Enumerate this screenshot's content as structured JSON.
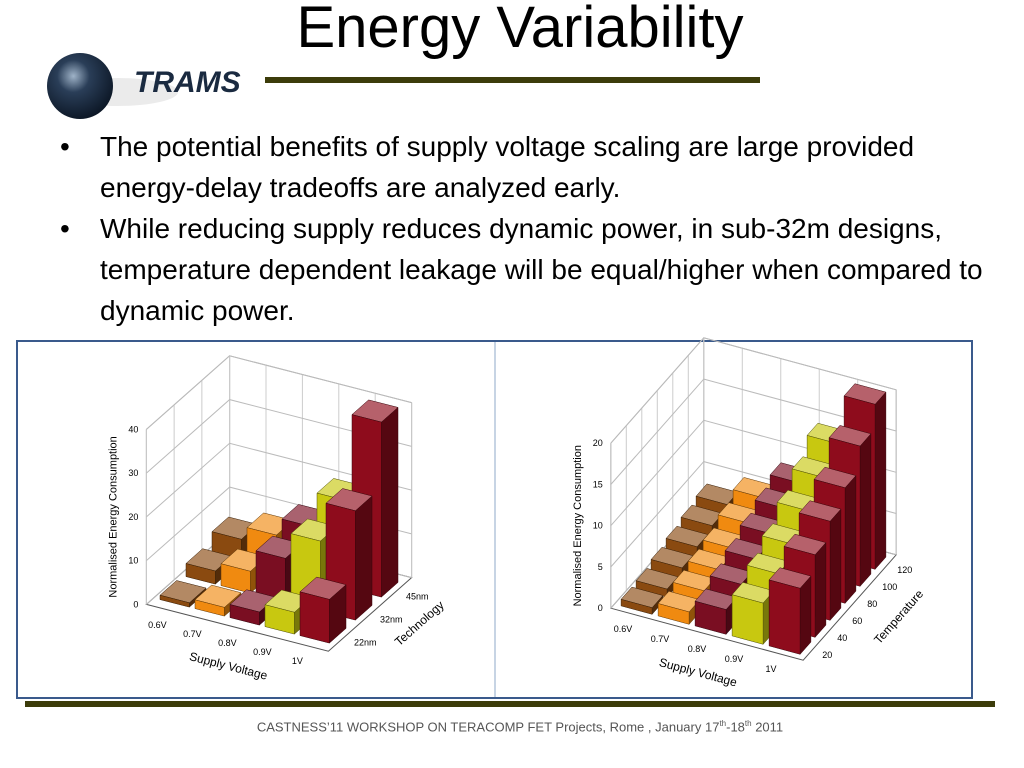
{
  "header": {
    "title": "Energy Variability",
    "logo": "TRAMS"
  },
  "bullets": [
    "The potential benefits of supply voltage scaling are large provided energy-delay tradeoffs are analyzed early.",
    "While reducing supply reduces dynamic power, in sub-32m designs, temperature dependent leakage will be equal/higher when compared to dynamic power."
  ],
  "chart_data": [
    {
      "type": "bar3d",
      "ylabel": "Normalised Energy Consumption",
      "xlabel": "Supply Voltage",
      "zlabel": "Technology",
      "categories": [
        "0.6V",
        "0.7V",
        "0.8V",
        "0.9V",
        "1V"
      ],
      "category_colors": [
        "#8a4a10",
        "#f08a10",
        "#7a0e22",
        "#c8c810",
        "#8e0c1c"
      ],
      "series": [
        {
          "name": "22nm",
          "values": [
            1,
            2,
            3,
            5,
            10
          ]
        },
        {
          "name": "32nm",
          "values": [
            3,
            5,
            10,
            16,
            25
          ]
        },
        {
          "name": "45nm",
          "values": [
            5,
            8,
            12,
            20,
            40
          ]
        }
      ],
      "ylim": [
        0,
        40
      ],
      "yticks": [
        0,
        10,
        20,
        30,
        40
      ],
      "grid": true
    },
    {
      "type": "bar3d",
      "ylabel": "Normalised Energy Consumption",
      "xlabel": "Supply Voltage",
      "zlabel": "Temperature",
      "categories": [
        "0.6V",
        "0.7V",
        "0.8V",
        "0.9V",
        "1V"
      ],
      "category_colors": [
        "#8a4a10",
        "#f08a10",
        "#7a0e22",
        "#c8c810",
        "#8e0c1c"
      ],
      "series": [
        {
          "name": 20,
          "values": [
            0.8,
            1.5,
            3,
            5,
            8
          ]
        },
        {
          "name": 40,
          "values": [
            1,
            2,
            4,
            6.5,
            10
          ]
        },
        {
          "name": 60,
          "values": [
            1.5,
            2.5,
            5,
            8,
            12
          ]
        },
        {
          "name": 80,
          "values": [
            2,
            3,
            6,
            10,
            14
          ]
        },
        {
          "name": 100,
          "values": [
            2.5,
            4,
            7,
            12,
            17
          ]
        },
        {
          "name": 120,
          "values": [
            3,
            5,
            8,
            14,
            20
          ]
        }
      ],
      "ylim": [
        0,
        20
      ],
      "yticks": [
        0,
        5,
        10,
        15,
        20
      ],
      "grid": true
    }
  ],
  "footer": {
    "parts": [
      "CASTNESS’11 WORKSHOP ON TERACOMP  FET Projects, Rome , January 17",
      "th",
      "-18",
      "th",
      " 2011"
    ]
  }
}
